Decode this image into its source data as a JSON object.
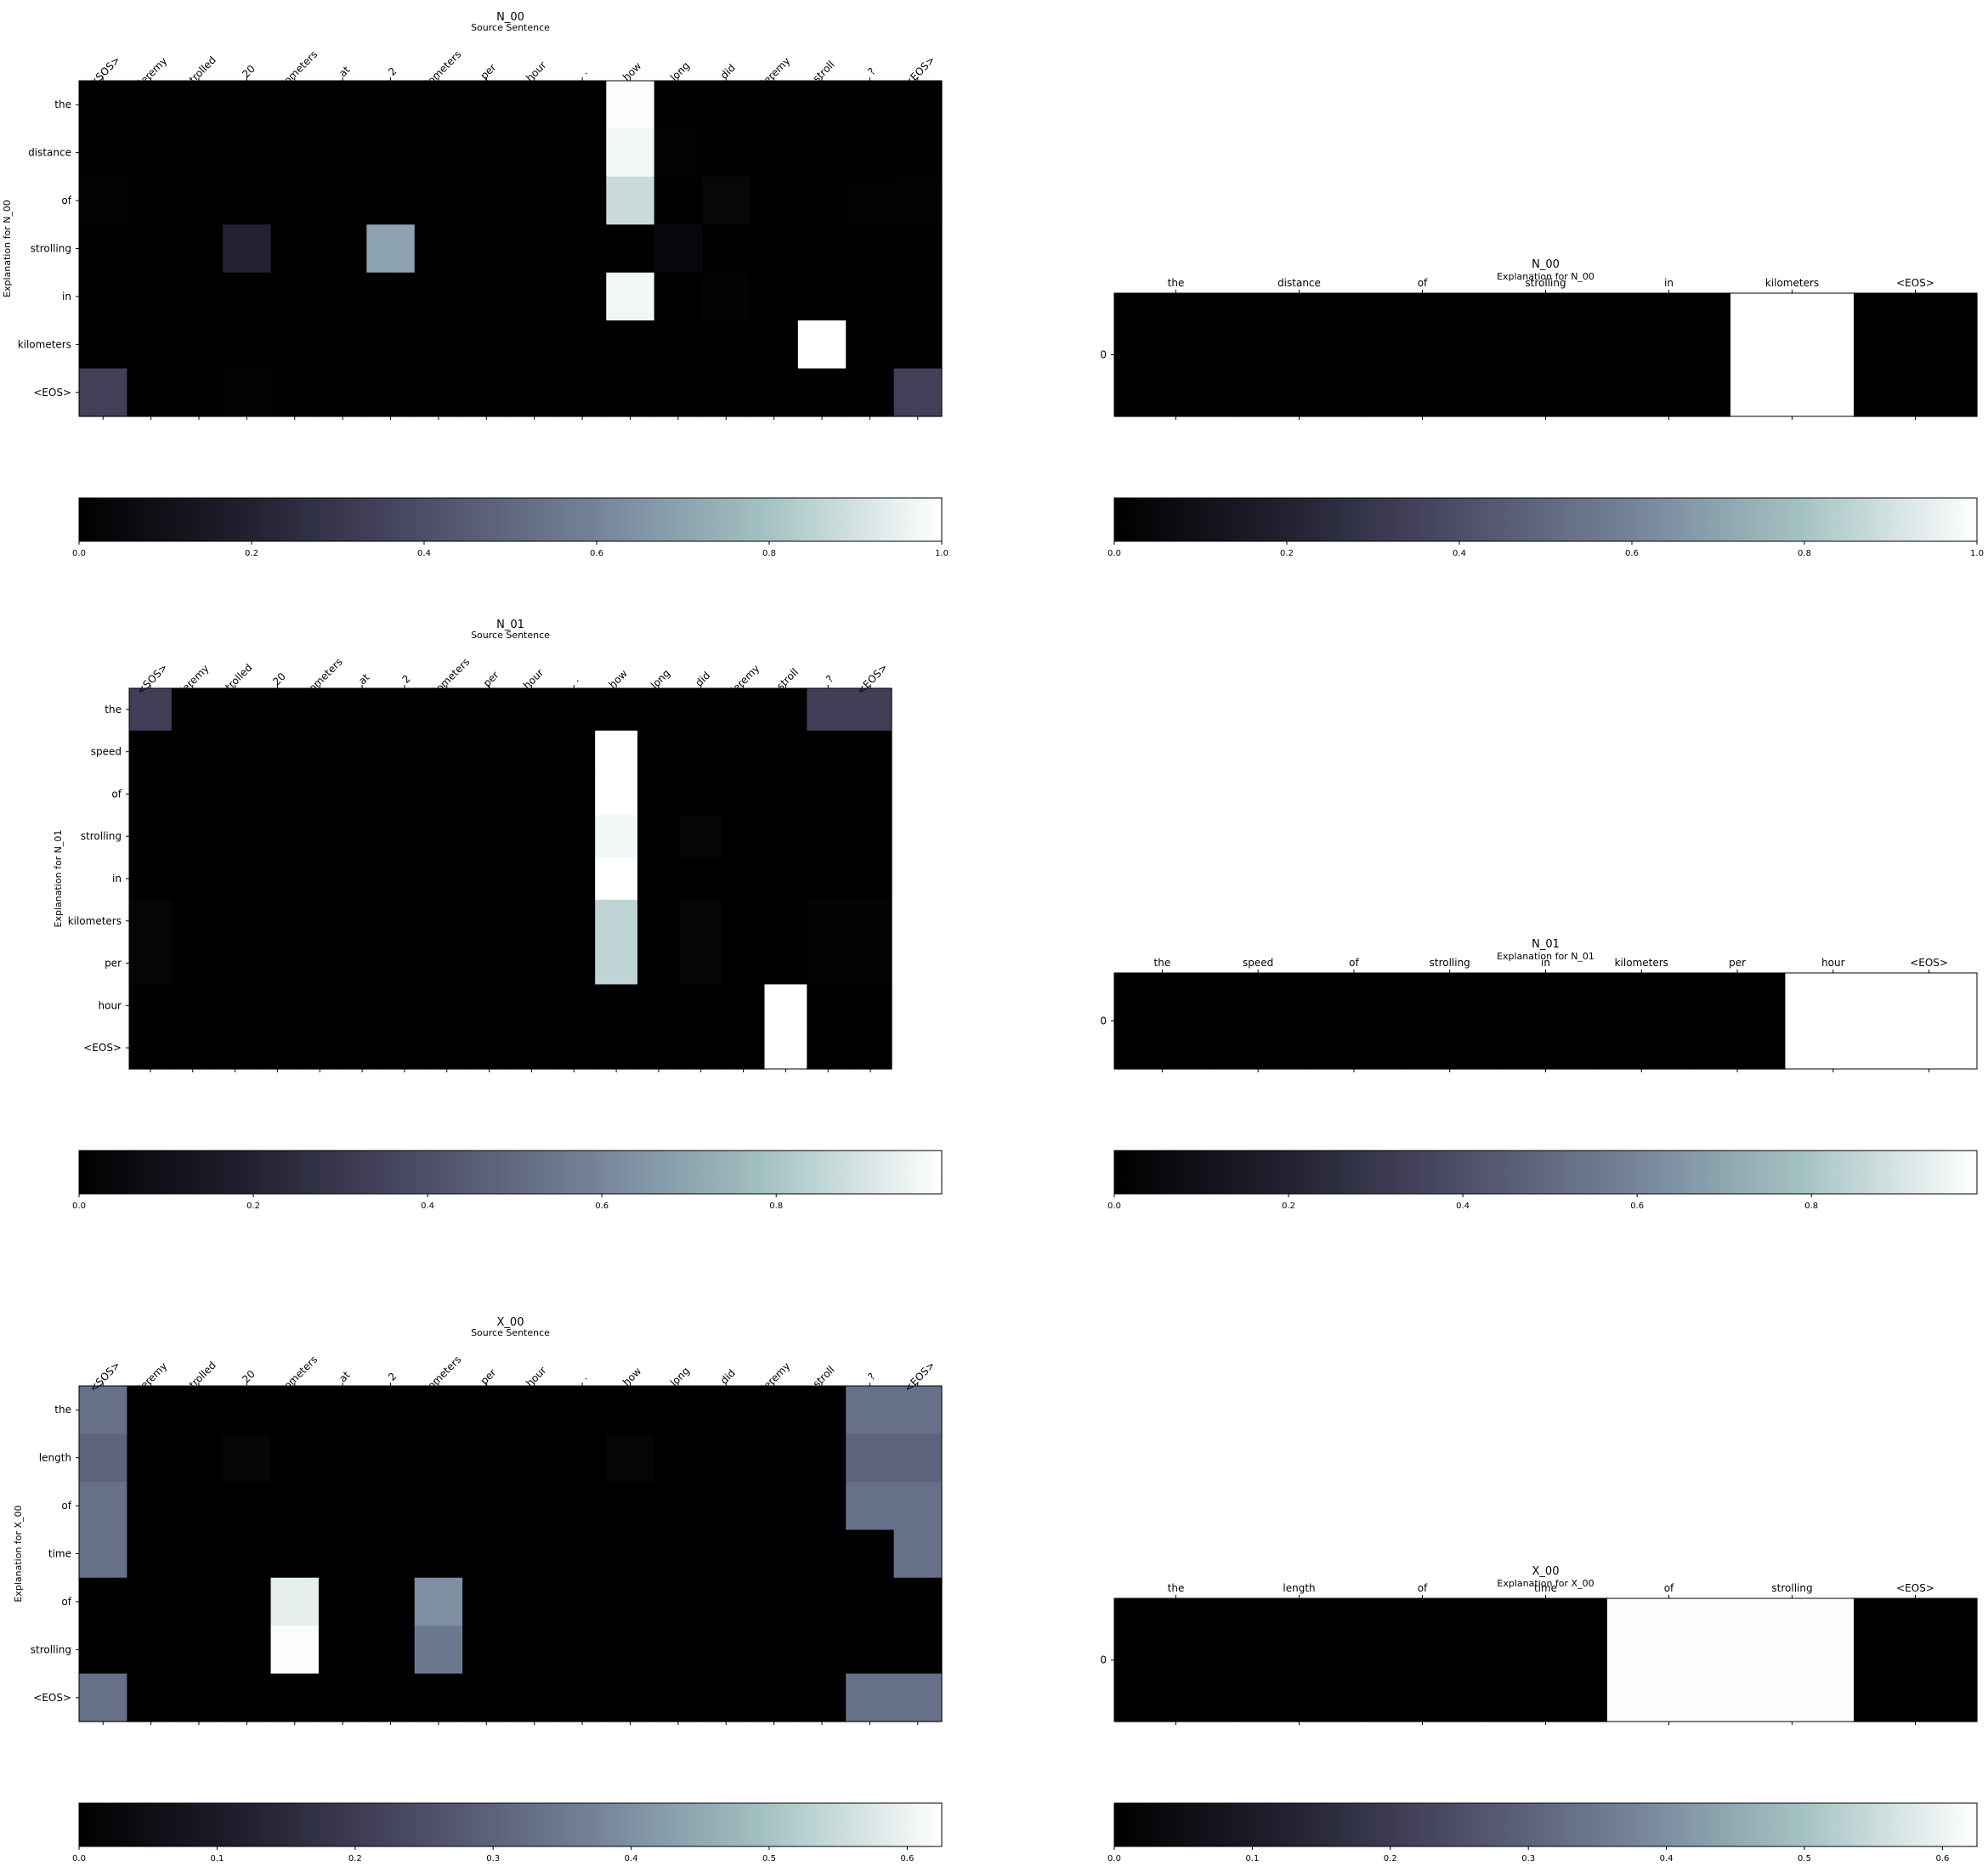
{
  "colormap": {
    "name": "bone",
    "stops": [
      "#000000",
      "#212131",
      "#4e4d68",
      "#74839a",
      "#a5c3c3",
      "#ffffff"
    ]
  },
  "chart_data": [
    {
      "type": "heatmap",
      "title": "N_00",
      "subtitle": "Source Sentence",
      "ylabel": "Explanation for N_00",
      "x_tokens": [
        "<SOS>",
        "jeremy",
        "strolled",
        "20",
        "kilometers",
        "at",
        "2",
        "kilometers",
        "per",
        "hour",
        ".",
        "how",
        "long",
        "did",
        "jeremy",
        "stroll",
        "?",
        "<EOS>"
      ],
      "y_tokens": [
        "the",
        "distance",
        "of",
        "strolling",
        "in",
        "kilometers",
        "<EOS>"
      ],
      "values": [
        [
          0,
          0,
          0,
          0,
          0,
          0,
          0,
          0,
          0,
          0,
          0,
          0.99,
          0,
          0,
          0,
          0,
          0,
          0
        ],
        [
          0,
          0,
          0,
          0,
          0,
          0,
          0,
          0,
          0,
          0,
          0,
          0.97,
          0.01,
          0,
          0,
          0,
          0,
          0
        ],
        [
          0.02,
          0,
          0,
          0,
          0,
          0,
          0,
          0,
          0,
          0,
          0,
          0.88,
          0,
          0.04,
          0,
          0,
          0.01,
          0.02
        ],
        [
          0,
          0,
          0,
          0.2,
          0,
          0,
          0.7,
          0,
          0,
          0,
          0,
          0,
          0.05,
          0,
          0,
          0,
          0,
          0
        ],
        [
          0,
          0,
          0,
          0,
          0,
          0,
          0,
          0,
          0,
          0,
          0,
          0.97,
          0,
          0.02,
          0,
          0,
          0,
          0
        ],
        [
          0,
          0,
          0,
          0,
          0,
          0,
          0,
          0,
          0,
          0,
          0,
          0,
          0,
          0,
          0,
          1.0,
          0,
          0
        ],
        [
          0.34,
          0,
          0,
          0.02,
          0,
          0,
          0,
          0,
          0,
          0,
          0,
          0,
          0,
          0,
          0,
          0,
          0,
          0.34
        ]
      ],
      "colorbar": {
        "min": 0.0,
        "max": 1.0,
        "ticks": [
          0.0,
          0.2,
          0.4,
          0.6,
          0.8,
          1.0
        ],
        "tick_labels": [
          "0.0",
          "0.2",
          "0.4",
          "0.6",
          "0.8",
          "1.0"
        ]
      }
    },
    {
      "type": "heatmap",
      "title": "N_00",
      "subtitle": "Explanation for N_00",
      "x_tokens": [
        "the",
        "distance",
        "of",
        "strolling",
        "in",
        "kilometers",
        "<EOS>"
      ],
      "y_tokens": [
        "0"
      ],
      "values": [
        [
          0,
          0,
          0,
          0,
          0,
          1.0,
          0
        ]
      ],
      "colorbar": {
        "min": 0.0,
        "max": 1.0,
        "ticks": [
          0.0,
          0.2,
          0.4,
          0.6,
          0.8,
          1.0
        ],
        "tick_labels": [
          "0.0",
          "0.2",
          "0.4",
          "0.6",
          "0.8",
          "1.0"
        ]
      }
    },
    {
      "type": "heatmap",
      "title": "N_01",
      "subtitle": "Source Sentence",
      "ylabel": "Explanation for N_01",
      "x_tokens": [
        "<SOS>",
        "jeremy",
        "strolled",
        "20",
        "kilometers",
        "at",
        "2",
        "kilometers",
        "per",
        "hour",
        ".",
        "how",
        "long",
        "did",
        "jeremy",
        "stroll",
        "?",
        "<EOS>"
      ],
      "y_tokens": [
        "the",
        "speed",
        "of",
        "strolling",
        "in",
        "kilometers",
        "per",
        "hour",
        "<EOS>"
      ],
      "values": [
        [
          0.33,
          0,
          0,
          0,
          0,
          0,
          0,
          0,
          0,
          0,
          0,
          0,
          0,
          0,
          0,
          0,
          0.33,
          0.33
        ],
        [
          0,
          0,
          0,
          0,
          0,
          0,
          0,
          0,
          0,
          0,
          0,
          0.99,
          0,
          0,
          0,
          0,
          0,
          0
        ],
        [
          0,
          0,
          0,
          0,
          0,
          0,
          0,
          0,
          0,
          0,
          0,
          0.99,
          0,
          0,
          0,
          0,
          0,
          0
        ],
        [
          0,
          0,
          0,
          0,
          0,
          0,
          0,
          0,
          0,
          0,
          0,
          0.96,
          0,
          0.03,
          0,
          0,
          0,
          0
        ],
        [
          0,
          0,
          0,
          0,
          0,
          0,
          0,
          0,
          0,
          0,
          0,
          0.99,
          0,
          0,
          0,
          0,
          0,
          0
        ],
        [
          0.03,
          0,
          0,
          0,
          0,
          0,
          0,
          0,
          0,
          0,
          0,
          0.85,
          0,
          0.03,
          0,
          0,
          0.02,
          0.02
        ],
        [
          0.03,
          0,
          0,
          0,
          0,
          0,
          0,
          0,
          0,
          0,
          0,
          0.85,
          0,
          0.03,
          0,
          0,
          0.02,
          0.02
        ],
        [
          0,
          0,
          0,
          0,
          0,
          0,
          0,
          0,
          0,
          0,
          0,
          0,
          0,
          0,
          0,
          0.99,
          0,
          0
        ],
        [
          0,
          0,
          0,
          0,
          0,
          0,
          0,
          0,
          0,
          0,
          0,
          0,
          0,
          0,
          0,
          0.99,
          0,
          0
        ]
      ],
      "colorbar": {
        "min": 0.0,
        "max": 0.99,
        "ticks": [
          0.0,
          0.2,
          0.4,
          0.6,
          0.8
        ],
        "tick_labels": [
          "0.0",
          "0.2",
          "0.4",
          "0.6",
          "0.8"
        ]
      }
    },
    {
      "type": "heatmap",
      "title": "N_01",
      "subtitle": "Explanation for N_01",
      "x_tokens": [
        "the",
        "speed",
        "of",
        "strolling",
        "in",
        "kilometers",
        "per",
        "hour",
        "<EOS>"
      ],
      "y_tokens": [
        "0"
      ],
      "values": [
        [
          0,
          0,
          0,
          0,
          0,
          0,
          0,
          0.99,
          0.99
        ]
      ],
      "colorbar": {
        "min": 0.0,
        "max": 0.99,
        "ticks": [
          0.0,
          0.2,
          0.4,
          0.6,
          0.8
        ],
        "tick_labels": [
          "0.0",
          "0.2",
          "0.4",
          "0.6",
          "0.8"
        ]
      }
    },
    {
      "type": "heatmap",
      "title": "X_00",
      "subtitle": "Source Sentence",
      "ylabel": "Explanation for X_00",
      "x_tokens": [
        "<SOS>",
        "jeremy",
        "strolled",
        "20",
        "kilometers",
        "at",
        "2",
        "kilometers",
        "per",
        "hour",
        ".",
        "how",
        "long",
        "did",
        "jeremy",
        "stroll",
        "?",
        "<EOS>"
      ],
      "y_tokens": [
        "the",
        "length",
        "of",
        "time",
        "of",
        "strolling",
        "<EOS>"
      ],
      "values": [
        [
          0.33,
          0,
          0,
          0,
          0,
          0,
          0,
          0,
          0,
          0,
          0,
          0,
          0,
          0,
          0,
          0,
          0.33,
          0.33
        ],
        [
          0.3,
          0,
          0,
          0.02,
          0,
          0,
          0,
          0,
          0,
          0,
          0,
          0.02,
          0,
          0,
          0,
          0,
          0.3,
          0.3
        ],
        [
          0.33,
          0,
          0,
          0,
          0,
          0,
          0,
          0,
          0,
          0,
          0,
          0,
          0,
          0,
          0,
          0,
          0.33,
          0.33
        ],
        [
          0.33,
          0,
          0,
          0,
          0,
          0,
          0,
          0,
          0,
          0,
          0,
          0,
          0,
          0,
          0,
          0,
          0,
          0.33
        ],
        [
          0,
          0,
          0,
          0,
          0.59,
          0,
          0,
          0.4,
          0,
          0,
          0,
          0,
          0,
          0,
          0,
          0,
          0,
          0
        ],
        [
          0,
          0,
          0,
          0,
          0.62,
          0,
          0,
          0.35,
          0,
          0,
          0,
          0,
          0,
          0,
          0,
          0,
          0,
          0
        ],
        [
          0.33,
          0,
          0,
          0,
          0,
          0,
          0,
          0,
          0,
          0,
          0,
          0,
          0,
          0,
          0,
          0,
          0.33,
          0.33
        ]
      ],
      "colorbar": {
        "min": 0.0,
        "max": 0.625,
        "ticks": [
          0.0,
          0.1,
          0.2,
          0.3,
          0.4,
          0.5,
          0.6
        ],
        "tick_labels": [
          "0.0",
          "0.1",
          "0.2",
          "0.3",
          "0.4",
          "0.5",
          "0.6"
        ]
      }
    },
    {
      "type": "heatmap",
      "title": "X_00",
      "subtitle": "Explanation for X_00",
      "x_tokens": [
        "the",
        "length",
        "of",
        "time",
        "of",
        "strolling",
        "<EOS>"
      ],
      "y_tokens": [
        "0"
      ],
      "values": [
        [
          0,
          0,
          0,
          0,
          0.62,
          0.62,
          0
        ]
      ],
      "colorbar": {
        "min": 0.0,
        "max": 0.625,
        "ticks": [
          0.0,
          0.1,
          0.2,
          0.3,
          0.4,
          0.5,
          0.6
        ],
        "tick_labels": [
          "0.0",
          "0.1",
          "0.2",
          "0.3",
          "0.4",
          "0.5",
          "0.6"
        ]
      }
    }
  ]
}
